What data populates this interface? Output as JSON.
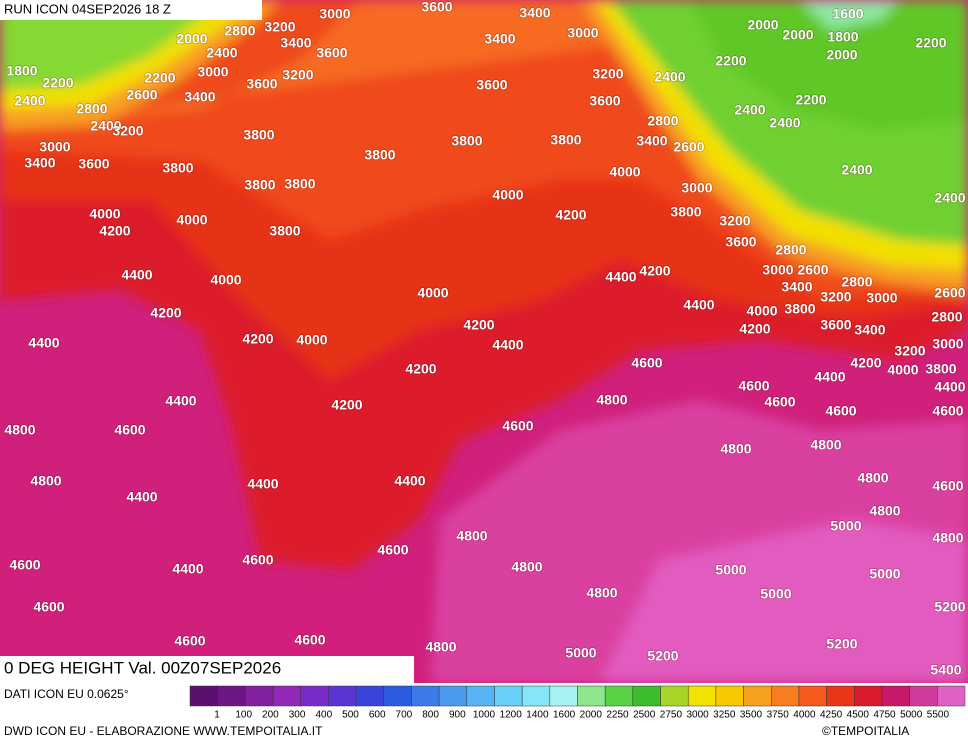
{
  "header": {
    "run": "RUN ICON 04SEP2026 18 Z"
  },
  "map": {
    "title": "0 DEG HEIGHT Val. 00Z07SEP2026",
    "contour_labels": [
      3000,
      3600,
      3400,
      2000,
      2800,
      3200,
      3400,
      3600,
      3400,
      3000,
      2000,
      1600,
      2000,
      1800,
      2000,
      2200,
      1800,
      2200,
      2400,
      2200,
      2600,
      3000,
      3400,
      3600,
      3200,
      3600,
      3200,
      2400,
      2200,
      2400,
      2800,
      2400,
      3200,
      3600,
      2200,
      2400,
      2400,
      3000,
      2800,
      3800,
      3400,
      2600,
      3800,
      3800,
      3800,
      3400,
      3600,
      3800,
      4000,
      2400,
      3800,
      3800,
      3000,
      2400,
      4000,
      4000,
      4000,
      3800,
      4200,
      3200,
      4200,
      3800,
      3600,
      2800,
      4000,
      3000,
      2600,
      4400,
      4400,
      4200,
      3400,
      2800,
      4000,
      3200,
      3000,
      2600,
      4200,
      4400,
      4000,
      3800,
      2800,
      4200,
      4200,
      3600,
      3400,
      4400,
      4200,
      4000,
      4400,
      3000,
      3200,
      4200,
      4600,
      4200,
      4000,
      3800,
      4400,
      4600,
      4400,
      4400,
      4200,
      4800,
      4600,
      4600,
      4600,
      4800,
      4600,
      4600,
      4800,
      4800,
      4800,
      4400,
      4400,
      4400,
      4800,
      4600,
      5000,
      4800,
      4800,
      4600,
      4800,
      4600,
      4600,
      4400,
      4800,
      5000,
      5000,
      4800,
      5000,
      4600,
      5200,
      4600,
      4600,
      5200,
      4800,
      5000,
      5200,
      5400
    ]
  },
  "legend": {
    "source": "DATI ICON EU 0.0625°",
    "values": [
      1,
      100,
      200,
      300,
      400,
      500,
      600,
      700,
      800,
      900,
      1000,
      1200,
      1400,
      1600,
      2000,
      2250,
      2500,
      2750,
      3000,
      3250,
      3500,
      3750,
      4000,
      4250,
      4500,
      4750,
      5000,
      5500
    ],
    "colors": [
      "#5a0f6e",
      "#6e1686",
      "#82209e",
      "#9428b8",
      "#7a2cc8",
      "#5c34d4",
      "#3c44dc",
      "#2c5ce0",
      "#3c7ce8",
      "#4c9af0",
      "#56b4f4",
      "#66d0f8",
      "#86e6f8",
      "#a6f2f2",
      "#8ee68a",
      "#5ad246",
      "#3cbe2c",
      "#a6d428",
      "#f2e400",
      "#f8c800",
      "#f8a020",
      "#f87c20",
      "#f45a1c",
      "#e8361a",
      "#d81c2c",
      "#c8186a",
      "#d03c9c",
      "#e060c4"
    ]
  },
  "footer": {
    "credit": "DWD ICON EU - ELABORAZIONE WWW.TEMPOITALIA.IT",
    "copyright": "©TEMPOITALIA"
  }
}
